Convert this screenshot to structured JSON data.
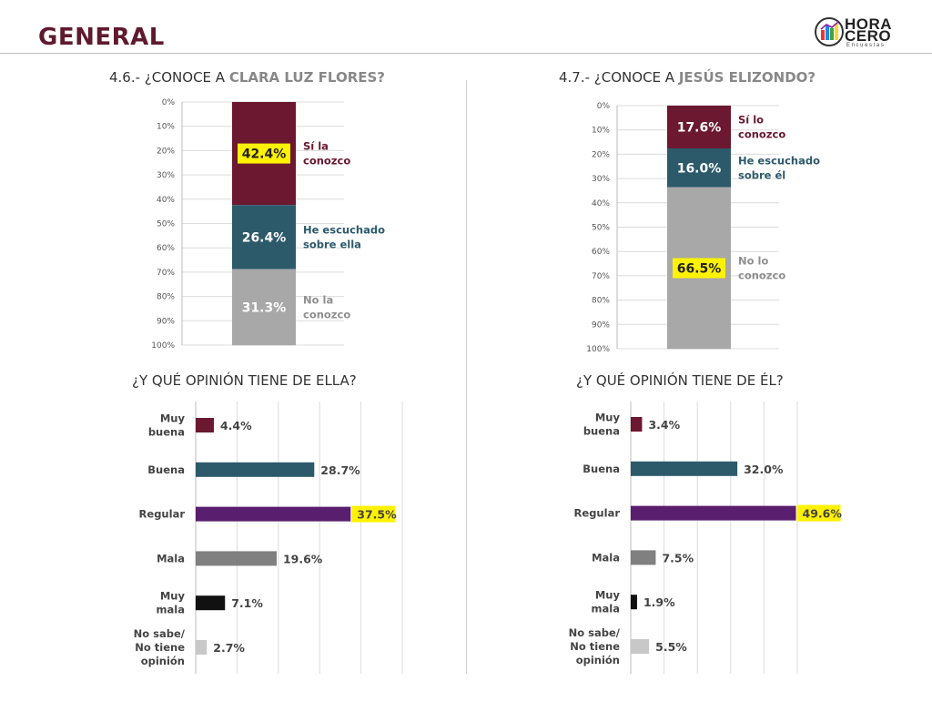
{
  "header": {
    "title": "GENERAL",
    "logo": {
      "line1": "HORA",
      "line2": "CERO",
      "line3": "Encuestas",
      "icon": "bar-chart-logo-icon"
    }
  },
  "colors": {
    "maroon": "#6b1830",
    "teal": "#2c5a6b",
    "gray": "#a8a8a8",
    "purple": "#5a1e6e",
    "darkgray": "#808080",
    "black": "#111111",
    "lightgray": "#c8c8c8",
    "highlight": "#fff200"
  },
  "chart_data": [
    {
      "type": "bar",
      "stacked": true,
      "title_prefix": "4.6.- ¿CONOCE A ",
      "title_highlight": "CLARA LUZ FLORES?",
      "yticks": [
        "0%",
        "10%",
        "20%",
        "30%",
        "40%",
        "50%",
        "60%",
        "70%",
        "80%",
        "90%",
        "100%"
      ],
      "ylim": [
        0,
        100
      ],
      "series": [
        {
          "name_lines": [
            "Sí la",
            "conozco"
          ],
          "value": 42.4,
          "label": "42.4%",
          "color": "#6b1830",
          "highlight": true
        },
        {
          "name_lines": [
            "He escuchado",
            "sobre ella"
          ],
          "value": 26.4,
          "label": "26.4%",
          "color": "#2c5a6b",
          "highlight": false
        },
        {
          "name_lines": [
            "No la",
            "conozco"
          ],
          "value": 31.3,
          "label": "31.3%",
          "color": "#a8a8a8",
          "highlight": false
        }
      ]
    },
    {
      "type": "bar",
      "stacked": true,
      "title_prefix": "4.7.- ¿CONOCE A ",
      "title_highlight": "JESÚS ELIZONDO?",
      "yticks": [
        "0%",
        "10%",
        "20%",
        "30%",
        "40%",
        "50%",
        "60%",
        "70%",
        "80%",
        "90%",
        "100%"
      ],
      "ylim": [
        0,
        100
      ],
      "series": [
        {
          "name_lines": [
            "Sí lo",
            "conozco"
          ],
          "value": 17.6,
          "label": "17.6%",
          "color": "#6b1830",
          "highlight": false
        },
        {
          "name_lines": [
            "He escuchado",
            "sobre él"
          ],
          "value": 16.0,
          "label": "16.0%",
          "color": "#2c5a6b",
          "highlight": false
        },
        {
          "name_lines": [
            "No lo",
            "conozco"
          ],
          "value": 66.5,
          "label": "66.5%",
          "color": "#a8a8a8",
          "highlight": true
        }
      ]
    },
    {
      "type": "bar",
      "orientation": "horizontal",
      "title": "¿Y QUÉ OPINIÓN TIENE DE ELLA?",
      "xlim": [
        0,
        50
      ],
      "categories": [
        [
          "Muy",
          "buena"
        ],
        [
          "Buena"
        ],
        [
          "Regular"
        ],
        [
          "Mala"
        ],
        [
          "Muy",
          "mala"
        ],
        [
          "No sabe/",
          "No tiene",
          "opinión"
        ]
      ],
      "values": [
        4.4,
        28.7,
        37.5,
        19.6,
        7.1,
        2.7
      ],
      "labels": [
        "4.4%",
        "28.7%",
        "37.5%",
        "19.6%",
        "7.1%",
        "2.7%"
      ],
      "bar_colors": [
        "#6b1830",
        "#2c5a6b",
        "#5a1e6e",
        "#808080",
        "#111111",
        "#c8c8c8"
      ],
      "highlight_index": 2
    },
    {
      "type": "bar",
      "orientation": "horizontal",
      "title": "¿Y QUÉ OPINIÓN TIENE DE ÉL?",
      "xlim": [
        0,
        50
      ],
      "categories": [
        [
          "Muy",
          "buena"
        ],
        [
          "Buena"
        ],
        [
          "Regular"
        ],
        [
          "Mala"
        ],
        [
          "Muy",
          "mala"
        ],
        [
          "No sabe/",
          "No tiene",
          "opinión"
        ]
      ],
      "values": [
        3.4,
        32.0,
        49.6,
        7.5,
        1.9,
        5.5
      ],
      "labels": [
        "3.4%",
        "32.0%",
        "49.6%",
        "7.5%",
        "1.9%",
        "5.5%"
      ],
      "bar_colors": [
        "#6b1830",
        "#2c5a6b",
        "#5a1e6e",
        "#808080",
        "#111111",
        "#c8c8c8"
      ],
      "highlight_index": 2
    }
  ]
}
